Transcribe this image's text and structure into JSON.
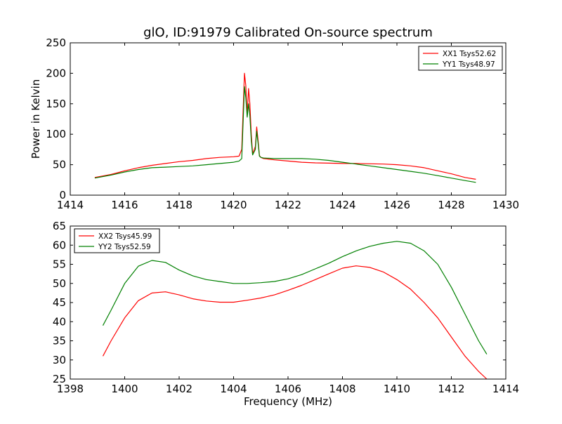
{
  "figure": {
    "title": "glO, ID:91979 Calibrated On-source spectrum"
  },
  "colors": {
    "xx": "#ff0000",
    "yy": "#008000",
    "axes": "#000000",
    "background": "#ffffff"
  },
  "chart_data": [
    {
      "type": "line",
      "title": "glO, ID:91979 Calibrated On-source spectrum",
      "xlabel": "",
      "ylabel": "Power in Kelvin",
      "xlim": [
        1414,
        1430
      ],
      "ylim": [
        0,
        250
      ],
      "xticks": [
        1414,
        1416,
        1418,
        1420,
        1422,
        1424,
        1426,
        1428,
        1430
      ],
      "yticks": [
        0,
        50,
        100,
        150,
        200,
        250
      ],
      "grid": false,
      "legend_position": "top-right",
      "series": [
        {
          "name": "XX1 Tsys52.62",
          "color": "#ff0000",
          "x": [
            1414.9,
            1415.5,
            1416.0,
            1416.5,
            1417.0,
            1417.5,
            1418.0,
            1418.5,
            1419.0,
            1419.5,
            1420.0,
            1420.2,
            1420.3,
            1420.4,
            1420.45,
            1420.5,
            1420.55,
            1420.6,
            1420.65,
            1420.7,
            1420.8,
            1420.85,
            1420.9,
            1420.95,
            1421.0,
            1421.1,
            1421.5,
            1422.0,
            1422.5,
            1423.0,
            1423.5,
            1424.0,
            1424.5,
            1425.0,
            1425.5,
            1426.0,
            1426.5,
            1427.0,
            1427.5,
            1428.0,
            1428.5,
            1428.9
          ],
          "y": [
            29,
            34,
            40,
            45,
            49,
            52,
            55,
            57,
            60,
            62,
            63,
            64,
            75,
            200,
            180,
            130,
            175,
            150,
            100,
            68,
            80,
            112,
            90,
            65,
            62,
            60,
            58,
            56,
            54,
            53,
            52.5,
            52,
            52,
            51.5,
            51,
            50,
            48,
            45,
            40,
            35,
            29,
            26
          ]
        },
        {
          "name": "YY1 Tsys48.97",
          "color": "#008000",
          "x": [
            1414.9,
            1415.5,
            1416.0,
            1416.5,
            1417.0,
            1417.5,
            1418.0,
            1418.5,
            1419.0,
            1419.5,
            1420.0,
            1420.2,
            1420.3,
            1420.4,
            1420.45,
            1420.5,
            1420.55,
            1420.6,
            1420.65,
            1420.7,
            1420.8,
            1420.85,
            1420.9,
            1420.95,
            1421.0,
            1421.1,
            1421.5,
            1422.0,
            1422.5,
            1423.0,
            1423.5,
            1424.0,
            1424.5,
            1425.0,
            1425.5,
            1426.0,
            1426.5,
            1427.0,
            1427.5,
            1428.0,
            1428.5,
            1428.9
          ],
          "y": [
            28,
            33,
            38,
            42,
            45,
            46,
            47,
            48,
            50,
            52,
            54,
            56,
            60,
            178,
            160,
            128,
            150,
            130,
            90,
            66,
            75,
            105,
            85,
            64,
            62,
            61,
            60,
            60,
            60,
            59,
            57,
            54,
            51,
            48,
            45,
            42,
            39,
            36,
            32,
            28,
            24,
            21
          ]
        }
      ]
    },
    {
      "type": "line",
      "title": "",
      "xlabel": "Frequency (MHz)",
      "ylabel": "",
      "xlim": [
        1398,
        1414
      ],
      "ylim": [
        25,
        65
      ],
      "xticks": [
        1398,
        1400,
        1402,
        1404,
        1406,
        1408,
        1410,
        1412,
        1414
      ],
      "yticks": [
        25,
        30,
        35,
        40,
        45,
        50,
        55,
        60,
        65
      ],
      "grid": false,
      "legend_position": "top-left",
      "series": [
        {
          "name": "XX2 Tsys45.99",
          "color": "#ff0000",
          "x": [
            1399.2,
            1399.5,
            1400.0,
            1400.5,
            1401.0,
            1401.5,
            1402.0,
            1402.5,
            1403.0,
            1403.5,
            1404.0,
            1404.5,
            1405.0,
            1405.5,
            1406.0,
            1406.5,
            1407.0,
            1407.5,
            1408.0,
            1408.5,
            1409.0,
            1409.5,
            1410.0,
            1410.5,
            1411.0,
            1411.5,
            1412.0,
            1412.5,
            1413.0,
            1413.3
          ],
          "y": [
            31,
            35,
            41,
            45.5,
            47.5,
            47.8,
            47,
            46,
            45.4,
            45.1,
            45.1,
            45.6,
            46.2,
            47,
            48.2,
            49.5,
            51,
            52.5,
            54,
            54.6,
            54.2,
            53,
            51,
            48.5,
            45,
            41,
            36,
            31,
            27,
            25
          ]
        },
        {
          "name": "YY2 Tsys52.59",
          "color": "#008000",
          "x": [
            1399.2,
            1399.5,
            1400.0,
            1400.5,
            1401.0,
            1401.5,
            1402.0,
            1402.5,
            1403.0,
            1403.5,
            1404.0,
            1404.5,
            1405.0,
            1405.5,
            1406.0,
            1406.5,
            1407.0,
            1407.5,
            1408.0,
            1408.5,
            1409.0,
            1409.5,
            1410.0,
            1410.5,
            1411.0,
            1411.5,
            1412.0,
            1412.5,
            1413.0,
            1413.3
          ],
          "y": [
            39,
            43,
            50,
            54.5,
            56,
            55.5,
            53.5,
            52,
            51,
            50.5,
            50,
            50,
            50.2,
            50.5,
            51.2,
            52.3,
            53.8,
            55.3,
            57,
            58.5,
            59.7,
            60.5,
            61,
            60.5,
            58.5,
            55,
            49,
            42,
            35,
            31.5
          ]
        }
      ]
    }
  ]
}
